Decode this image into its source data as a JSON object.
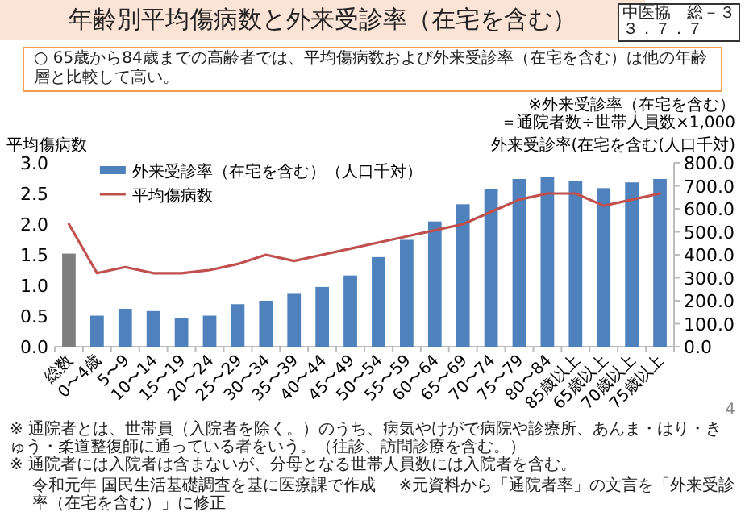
{
  "chart_data": {
    "type": "bar",
    "title": "年齢別平均傷病数と外来受診率（在宅を含む）",
    "subtitle": "○ 65歳から84歳までの高齢者では、平均傷病数および外来受診率（在宅を含む）は他の年齢層と比較して高い。",
    "ylabel": "平均傷病数",
    "y2label": "外来受診率(在宅を含む(人口千対)",
    "categories": [
      "総数",
      "0〜4歳",
      "5〜9",
      "10〜14",
      "15〜19",
      "20〜24",
      "25〜29",
      "30〜34",
      "35〜39",
      "40〜44",
      "45〜49",
      "50〜54",
      "55〜59",
      "60〜64",
      "65〜69",
      "70〜74",
      "75〜79",
      "80〜84",
      "85歳以上",
      "65歳以上",
      "70歳以上",
      "75歳以上"
    ],
    "series": [
      {
        "name": "外来受診率（在宅を含む）（人口千対）",
        "axis": "y2",
        "color": "#4f81bd",
        "colors": [
          "#7f7f7f",
          "#4f81bd",
          "#4f81bd",
          "#4f81bd",
          "#4f81bd",
          "#4f81bd",
          "#4f81bd",
          "#4f81bd",
          "#4f81bd",
          "#4f81bd",
          "#4f81bd",
          "#4f81bd",
          "#4f81bd",
          "#4f81bd",
          "#4f81bd",
          "#4f81bd",
          "#4f81bd",
          "#4f81bd",
          "#4f81bd",
          "#4f81bd",
          "#4f81bd",
          "#4f81bd"
        ],
        "values": [
          405,
          135,
          165,
          155,
          125,
          135,
          185,
          200,
          230,
          260,
          310,
          390,
          465,
          545,
          620,
          685,
          730,
          740,
          720,
          690,
          715,
          730
        ]
      },
      {
        "name": "平均傷病数",
        "type": "line",
        "color": "#c0504d",
        "values": [
          2.0,
          1.2,
          1.3,
          1.2,
          1.2,
          1.25,
          1.35,
          1.5,
          1.4,
          1.5,
          1.6,
          1.7,
          1.8,
          1.9,
          2.0,
          2.2,
          2.4,
          2.5,
          2.5,
          2.3,
          2.4,
          2.5
        ]
      }
    ],
    "ylim": [
      0,
      3
    ],
    "yticks": [
      {
        "value": 0,
        "label": "0.0"
      },
      {
        "value": 0.5,
        "label": "0.5"
      },
      {
        "value": 1,
        "label": "1.0"
      },
      {
        "value": 1.5,
        "label": "1.5"
      },
      {
        "value": 2,
        "label": "2.0"
      },
      {
        "value": 2.5,
        "label": "2.5"
      },
      {
        "value": 3,
        "label": "3.0"
      }
    ],
    "y2lim": [
      0,
      800
    ],
    "y2ticks": [
      {
        "value": 0,
        "label": "0.0"
      },
      {
        "value": 100,
        "label": "100.0"
      },
      {
        "value": 200,
        "label": "200.0"
      },
      {
        "value": 300,
        "label": "300.0"
      },
      {
        "value": 400,
        "label": "400.0"
      },
      {
        "value": 500,
        "label": "500.0"
      },
      {
        "value": 600,
        "label": "600.0"
      },
      {
        "value": 700,
        "label": "700.0"
      },
      {
        "value": 800,
        "label": "800.0"
      }
    ],
    "legend": "top left",
    "grid": false,
    "marker": "none",
    "line_style": "solid",
    "annotations": [
      "中医協　総－３",
      "３．７．７",
      "※外来受診率（在宅を含む）",
      "＝通院者数÷世帯人員数×1,000",
      "※ 通院者とは、世帯員（入院者を除く。）のうち、病気やけがで病院や診療所、あんま・はり・きゅう・柔道整復師に通っている者をいう。（往診、訪問診療を含む。）",
      "※ 通院者には入院者は含まないが、分母となる世帯人員数には入院者を含む。",
      "令和元年 国民生活基礎調査を基に医療課で作成",
      "※元資料から「通院者率」の文言を「外来受診率（在宅を含む）」に修正",
      "4"
    ]
  }
}
